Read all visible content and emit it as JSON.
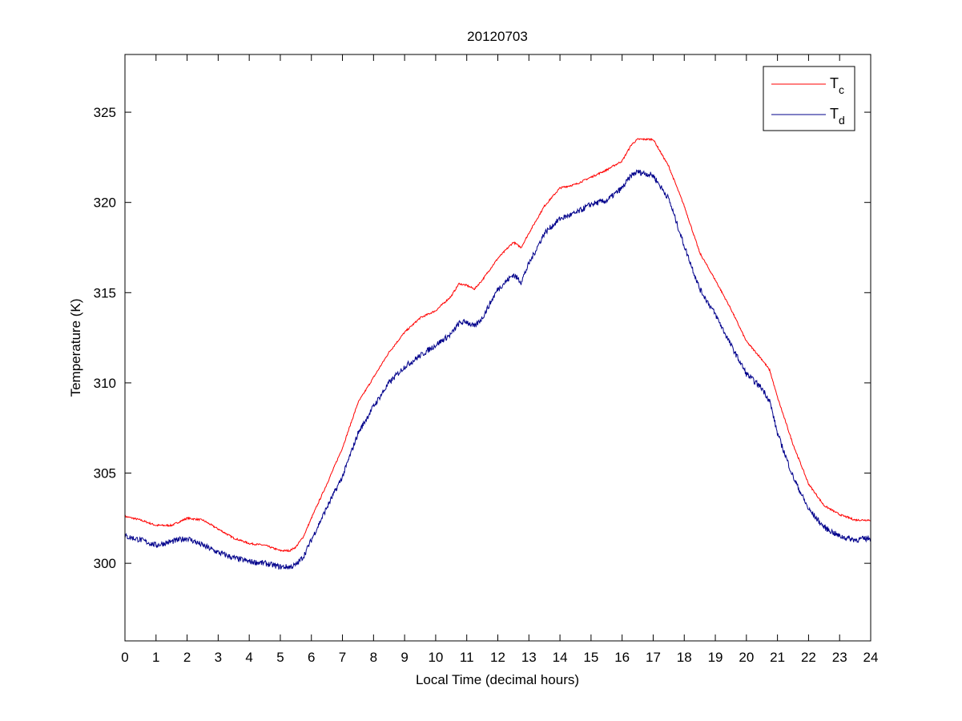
{
  "chart_data": {
    "type": "line",
    "title": "20120703",
    "xlabel": "Local Time (decimal hours)",
    "ylabel": "Temperature (K)",
    "xlim": [
      0,
      24
    ],
    "ylim": [
      295.7,
      328.2
    ],
    "xticks": [
      0,
      1,
      2,
      3,
      4,
      5,
      6,
      7,
      8,
      9,
      10,
      11,
      12,
      13,
      14,
      15,
      16,
      17,
      18,
      19,
      20,
      21,
      22,
      23,
      24
    ],
    "yticks": [
      300,
      305,
      310,
      315,
      320,
      325
    ],
    "grid": false,
    "legend_position": "top-right",
    "series": [
      {
        "name": "Tc",
        "legend_main": "T",
        "legend_sub": "c",
        "color": "#ff0000",
        "x": [
          0,
          0.5,
          1,
          1.5,
          2,
          2.5,
          3,
          3.5,
          4,
          4.5,
          5,
          5.3,
          5.5,
          5.75,
          6,
          6.5,
          7,
          7.5,
          8,
          8.5,
          9,
          9.5,
          10,
          10.5,
          10.75,
          11,
          11.25,
          11.5,
          12,
          12.5,
          12.75,
          13,
          13.5,
          14,
          14.5,
          15,
          15.5,
          16,
          16.3,
          16.5,
          17,
          17.5,
          18,
          18.5,
          19,
          19.5,
          20,
          20.5,
          20.75,
          21,
          21.5,
          22,
          22.5,
          23,
          23.5,
          24
        ],
        "values": [
          302.6,
          302.4,
          302.1,
          302.1,
          302.5,
          302.4,
          301.9,
          301.4,
          301.1,
          301.0,
          300.7,
          300.7,
          300.9,
          301.5,
          302.5,
          304.4,
          306.4,
          308.9,
          310.3,
          311.7,
          312.8,
          313.6,
          314.0,
          314.8,
          315.5,
          315.4,
          315.2,
          315.7,
          316.9,
          317.8,
          317.5,
          318.3,
          319.8,
          320.8,
          321.0,
          321.4,
          321.8,
          322.3,
          323.2,
          323.5,
          323.5,
          322.0,
          319.8,
          317.2,
          315.7,
          314.1,
          312.3,
          311.3,
          310.7,
          309.2,
          306.6,
          304.4,
          303.2,
          302.7,
          302.4,
          302.4
        ]
      },
      {
        "name": "Td",
        "legend_main": "T",
        "legend_sub": "d",
        "color": "#00008b",
        "x": [
          0,
          0.5,
          1,
          1.5,
          2,
          2.5,
          3,
          3.5,
          4,
          4.5,
          5,
          5.3,
          5.5,
          5.75,
          6,
          6.5,
          7,
          7.5,
          8,
          8.5,
          9,
          9.5,
          10,
          10.5,
          10.75,
          11,
          11.25,
          11.5,
          12,
          12.5,
          12.75,
          13,
          13.5,
          14,
          14.5,
          15,
          15.5,
          16,
          16.3,
          16.5,
          17,
          17.5,
          18,
          18.5,
          19,
          19.5,
          20,
          20.5,
          20.75,
          21,
          21.5,
          22,
          22.5,
          23,
          23.5,
          24
        ],
        "values": [
          301.5,
          301.3,
          301.0,
          301.2,
          301.4,
          301.0,
          300.6,
          300.3,
          300.1,
          300.0,
          299.8,
          299.8,
          299.9,
          300.4,
          301.3,
          303.1,
          304.8,
          307.2,
          308.7,
          310.0,
          310.9,
          311.5,
          312.1,
          312.7,
          313.3,
          313.4,
          313.1,
          313.6,
          315.2,
          316.0,
          315.6,
          316.6,
          318.3,
          319.1,
          319.4,
          319.9,
          320.1,
          320.8,
          321.5,
          321.7,
          321.5,
          320.2,
          317.6,
          315.2,
          313.8,
          312.1,
          310.5,
          309.7,
          309.0,
          307.2,
          304.8,
          303.0,
          302.0,
          301.5,
          301.3,
          301.4
        ]
      }
    ]
  }
}
